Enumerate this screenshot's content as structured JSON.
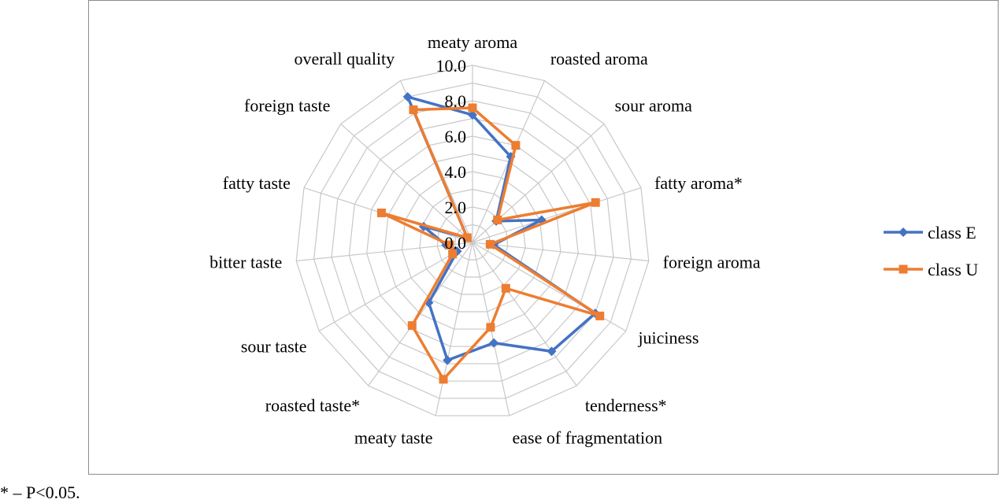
{
  "chart_data": {
    "type": "radar",
    "categories": [
      "meaty aroma",
      "roasted aroma",
      "sour aroma",
      "fatty aroma*",
      "foreign aroma",
      "juiciness",
      "tenderness*",
      "ease of fragmentation",
      "meaty taste",
      "roasted taste*",
      "sour taste",
      "bitter taste",
      "fatty taste",
      "foreign taste",
      "overall quality"
    ],
    "r_ticks": [
      "0.0",
      "2.0",
      "4.0",
      "6.0",
      "8.0",
      "10.0"
    ],
    "rlim": [
      0,
      10
    ],
    "grid": true,
    "legend_position": "right",
    "series": [
      {
        "name": "class E",
        "color": "#4472C4",
        "marker": "diamond",
        "values": [
          7.2,
          5.3,
          1.8,
          4.1,
          1.2,
          8.0,
          7.6,
          5.8,
          6.8,
          4.2,
          1.0,
          1.5,
          2.9,
          0.4,
          9.0
        ]
      },
      {
        "name": "class U",
        "color": "#ED7D31",
        "marker": "square",
        "values": [
          7.6,
          6.0,
          1.9,
          7.3,
          1.0,
          8.3,
          3.2,
          4.9,
          7.9,
          5.8,
          1.3,
          1.3,
          5.4,
          0.4,
          8.2
        ]
      }
    ]
  },
  "footnote": "* – P<0.05."
}
